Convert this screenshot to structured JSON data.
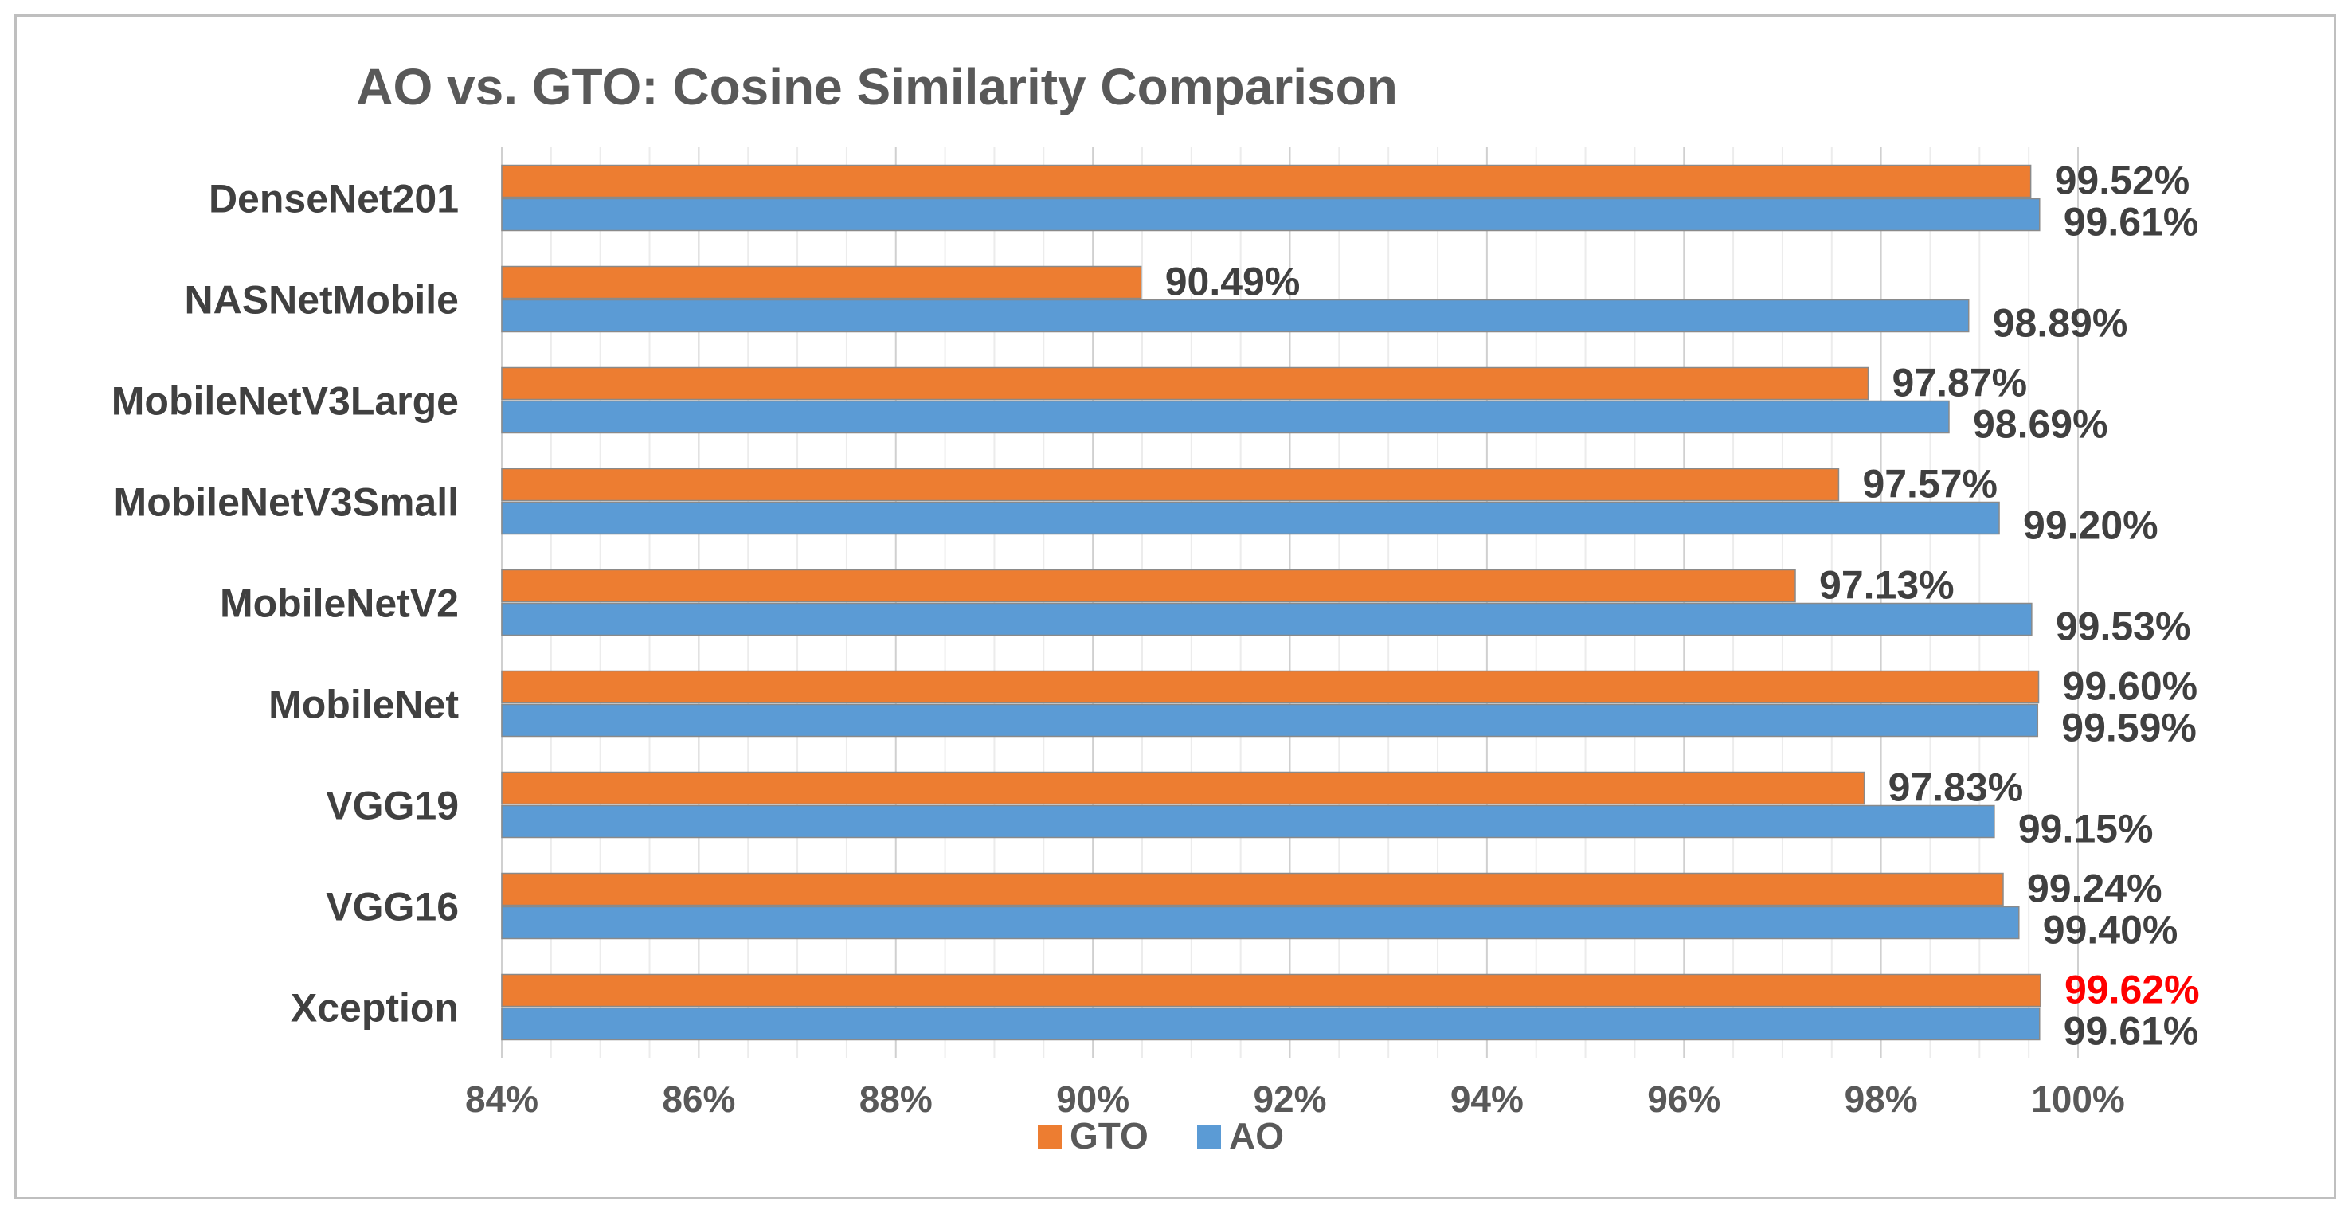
{
  "chart_data": {
    "type": "bar",
    "orientation": "horizontal",
    "title": "AO vs. GTO: Cosine Similarity Comparison",
    "categories": [
      "DenseNet201",
      "NASNetMobile",
      "MobileNetV3Large",
      "MobileNetV3Small",
      "MobileNetV2",
      "MobileNet",
      "VGG19",
      "VGG16",
      "Xception"
    ],
    "series": [
      {
        "name": "GTO",
        "color": "#ed7d31",
        "values": [
          99.52,
          90.49,
          97.87,
          97.57,
          97.13,
          99.6,
          97.83,
          99.24,
          99.62
        ],
        "labels": [
          "99.52%",
          "90.49%",
          "97.87%",
          "97.57%",
          "97.13%",
          "99.60%",
          "97.83%",
          "99.24%",
          "99.62%"
        ]
      },
      {
        "name": "AO",
        "color": "#5b9bd5",
        "values": [
          99.61,
          98.89,
          98.69,
          99.2,
          99.53,
          99.59,
          99.15,
          99.4,
          99.61
        ],
        "labels": [
          "99.61%",
          "98.89%",
          "98.69%",
          "99.20%",
          "99.53%",
          "99.59%",
          "99.15%",
          "99.40%",
          "99.61%"
        ]
      }
    ],
    "highlight": {
      "series": "GTO",
      "category": "Xception",
      "color": "#ff0000"
    },
    "xlim": [
      84,
      100
    ],
    "xticks": [
      84,
      86,
      88,
      90,
      92,
      94,
      96,
      98,
      100
    ],
    "xtick_labels": [
      "84%",
      "86%",
      "88%",
      "90%",
      "92%",
      "94%",
      "96%",
      "98%",
      "100%"
    ],
    "xlabel": "",
    "ylabel": "",
    "grid": true,
    "legend": "bottom"
  }
}
